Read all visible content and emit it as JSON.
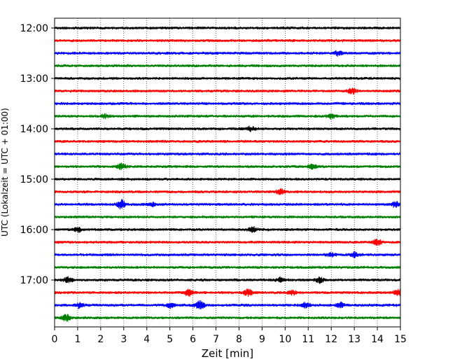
{
  "chart_data": {
    "type": "line",
    "title": "",
    "xlabel": "Zeit  [min]",
    "ylabel": "UTC (Lokalzeit = UTC + 01:00)",
    "xlim": [
      0,
      15
    ],
    "x_ticks": [
      "0",
      "1",
      "2",
      "3",
      "4",
      "5",
      "6",
      "7",
      "8",
      "9",
      "10",
      "11",
      "12",
      "13",
      "14",
      "15"
    ],
    "y_ticks": [
      "12:00",
      "13:00",
      "14:00",
      "15:00",
      "16:00",
      "17:00"
    ],
    "grid": "vertical dotted at each minute",
    "trace_colors": [
      "#000000",
      "#ff0000",
      "#0000ff",
      "#008000"
    ],
    "series": [
      {
        "start": "12:00",
        "color": "#000000",
        "events": []
      },
      {
        "start": "12:15",
        "color": "#ff0000",
        "events": []
      },
      {
        "start": "12:30",
        "color": "#0000ff",
        "events": [
          [
            12.3,
            0.5
          ]
        ]
      },
      {
        "start": "12:45",
        "color": "#008000",
        "events": []
      },
      {
        "start": "13:00",
        "color": "#000000",
        "events": []
      },
      {
        "start": "13:15",
        "color": "#ff0000",
        "events": [
          [
            12.9,
            0.6
          ]
        ]
      },
      {
        "start": "13:30",
        "color": "#0000ff",
        "events": []
      },
      {
        "start": "13:45",
        "color": "#008000",
        "events": [
          [
            12.0,
            0.5
          ],
          [
            2.2,
            0.4
          ]
        ]
      },
      {
        "start": "14:00",
        "color": "#000000",
        "events": [
          [
            8.5,
            0.5
          ]
        ]
      },
      {
        "start": "14:15",
        "color": "#ff0000",
        "events": []
      },
      {
        "start": "14:30",
        "color": "#0000ff",
        "events": []
      },
      {
        "start": "14:45",
        "color": "#008000",
        "events": [
          [
            2.9,
            0.7
          ],
          [
            11.2,
            0.5
          ]
        ]
      },
      {
        "start": "15:00",
        "color": "#000000",
        "events": []
      },
      {
        "start": "15:15",
        "color": "#ff0000",
        "events": [
          [
            9.8,
            0.6
          ]
        ]
      },
      {
        "start": "15:30",
        "color": "#0000ff",
        "events": [
          [
            2.9,
            1.0
          ],
          [
            14.8,
            0.6
          ],
          [
            4.2,
            0.4
          ]
        ]
      },
      {
        "start": "15:45",
        "color": "#008000",
        "events": []
      },
      {
        "start": "16:00",
        "color": "#000000",
        "events": [
          [
            1.0,
            0.5
          ],
          [
            8.6,
            0.5
          ]
        ]
      },
      {
        "start": "16:15",
        "color": "#ff0000",
        "events": [
          [
            14.0,
            0.6
          ]
        ]
      },
      {
        "start": "16:30",
        "color": "#0000ff",
        "events": [
          [
            13.0,
            0.6
          ],
          [
            12.0,
            0.4
          ]
        ]
      },
      {
        "start": "16:45",
        "color": "#008000",
        "events": []
      },
      {
        "start": "17:00",
        "color": "#000000",
        "events": [
          [
            0.6,
            0.6
          ],
          [
            11.5,
            0.6
          ],
          [
            9.8,
            0.5
          ]
        ]
      },
      {
        "start": "17:15",
        "color": "#ff0000",
        "events": [
          [
            5.8,
            0.8
          ],
          [
            8.4,
            0.8
          ],
          [
            14.9,
            0.7
          ],
          [
            10.3,
            0.5
          ]
        ]
      },
      {
        "start": "17:30",
        "color": "#0000ff",
        "events": [
          [
            6.3,
            1.2
          ],
          [
            1.1,
            0.7
          ],
          [
            10.9,
            0.6
          ],
          [
            12.4,
            0.6
          ],
          [
            5.0,
            0.6
          ]
        ]
      },
      {
        "start": "17:45",
        "color": "#008000",
        "events": [
          [
            0.5,
            0.7
          ]
        ]
      }
    ]
  }
}
